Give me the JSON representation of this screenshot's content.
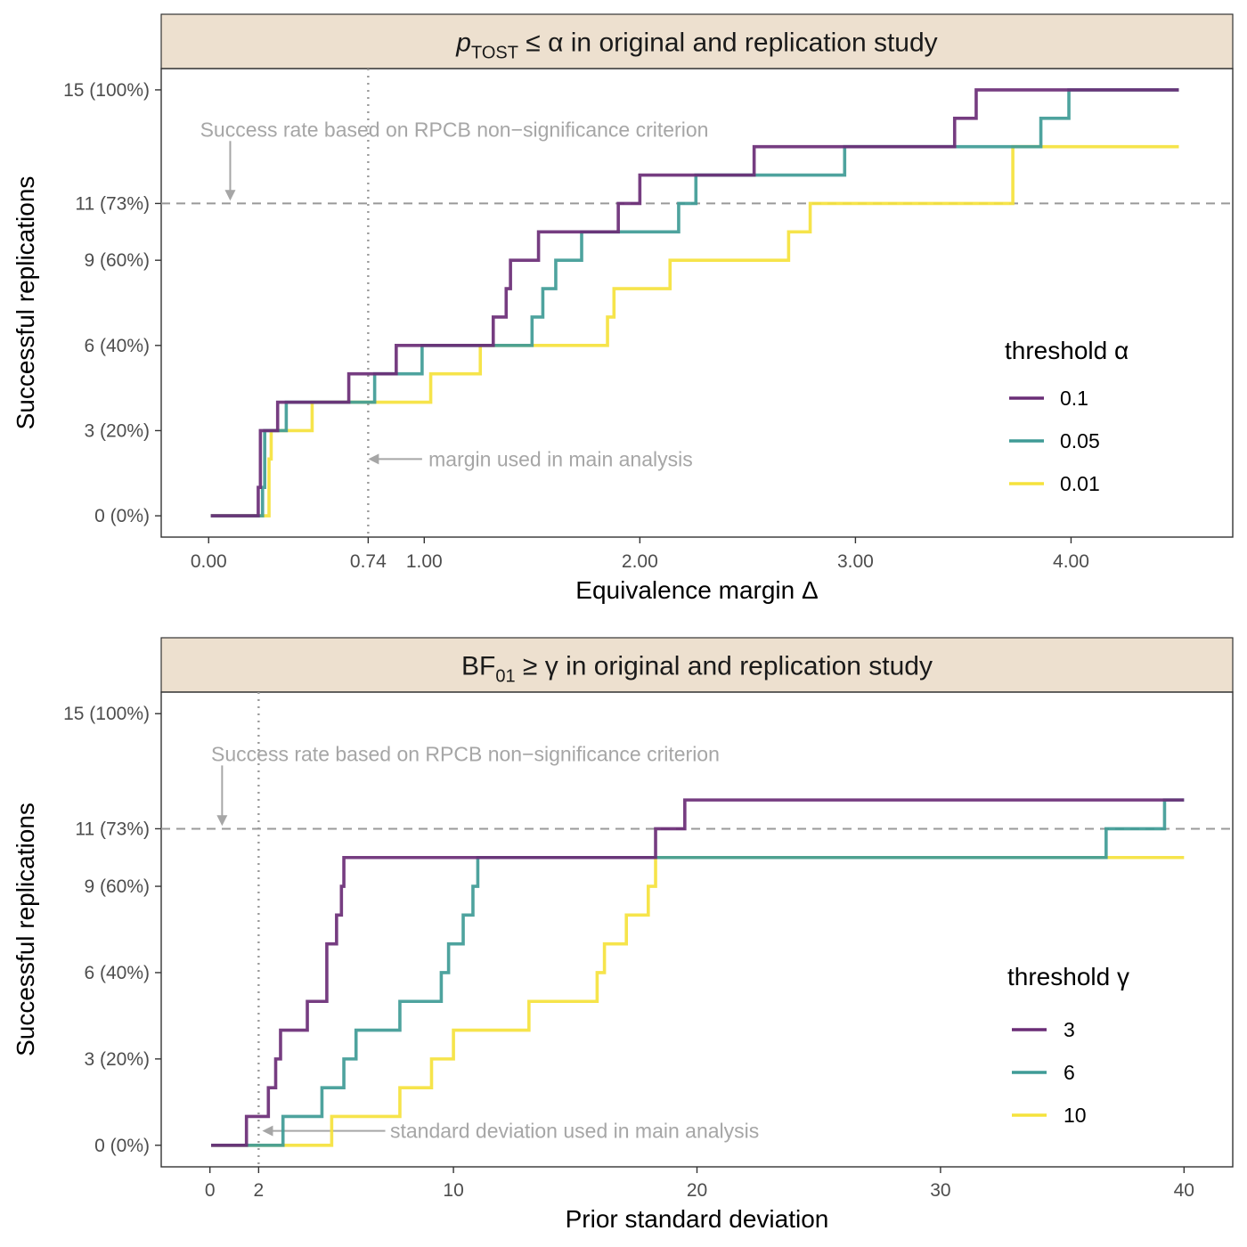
{
  "chart_data": [
    {
      "type": "line",
      "step": true,
      "strip_title": {
        "main": "p",
        "sub": "TOST",
        "rest": " ≤ α in original and replication study"
      },
      "xlabel": "Equivalence margin Δ",
      "ylabel": "Successful replications",
      "xlim": [
        -0.22,
        4.75
      ],
      "ylim": [
        -0.75,
        15.75
      ],
      "x_ticks": [
        {
          "value": 0,
          "label": "0.00"
        },
        {
          "value": 0.74,
          "label": "0.74"
        },
        {
          "value": 1,
          "label": "1.00"
        },
        {
          "value": 2,
          "label": "2.00"
        },
        {
          "value": 3,
          "label": "3.00"
        },
        {
          "value": 4,
          "label": "4.00"
        }
      ],
      "y_ticks": [
        {
          "value": 0,
          "label": "0 (0%)"
        },
        {
          "value": 3,
          "label": "3 (20%)"
        },
        {
          "value": 6,
          "label": "6 (40%)"
        },
        {
          "value": 9,
          "label": "9 (60%)"
        },
        {
          "value": 11,
          "label": "11 (73%)"
        },
        {
          "value": 15,
          "label": "15 (100%)"
        }
      ],
      "hline": 11,
      "vline": 0.74,
      "annotations": {
        "success_rate": {
          "text": "Success rate based on RPCB non−significance criterion",
          "x": -0.04,
          "y": 13.6,
          "arrow_x": 0.1,
          "arrow_y_from": 13.2,
          "arrow_y_to": 11.1
        },
        "margin": {
          "text": "margin used in main analysis",
          "x": 1.02,
          "y": 2,
          "arrow_x_from": 0.99,
          "arrow_x_to": 0.74
        }
      },
      "legend": {
        "title": "threshold α",
        "position": "right"
      },
      "series": [
        {
          "name": "0.1",
          "color": "#6a2d76",
          "x": [
            0.01,
            0.23,
            0.24,
            0.32,
            0.65,
            0.87,
            1.24,
            1.32,
            1.38,
            1.4,
            1.53,
            1.9,
            2.0,
            2.53,
            3.46,
            3.56,
            4.5
          ],
          "y": [
            0,
            1,
            3,
            4,
            5,
            6,
            6,
            7,
            8,
            9,
            10,
            11,
            12,
            13,
            14,
            15,
            15
          ]
        },
        {
          "name": "0.05",
          "color": "#3f9b96",
          "x": [
            0.01,
            0.25,
            0.26,
            0.36,
            0.77,
            0.99,
            1.5,
            1.55,
            1.61,
            1.73,
            2.18,
            2.26,
            2.95,
            3.86,
            3.99,
            4.5
          ],
          "y": [
            0,
            1,
            3,
            4,
            5,
            6,
            7,
            8,
            9,
            10,
            11,
            12,
            13,
            14,
            15,
            15
          ]
        },
        {
          "name": "0.01",
          "color": "#f5e23c",
          "x": [
            0.01,
            0.28,
            0.29,
            0.48,
            1.03,
            1.26,
            1.85,
            1.88,
            2.14,
            2.69,
            2.79,
            3.73,
            4.5
          ],
          "y": [
            0,
            2,
            3,
            4,
            5,
            6,
            7,
            8,
            9,
            10,
            11,
            13,
            13
          ]
        }
      ]
    },
    {
      "type": "line",
      "step": true,
      "strip_title": {
        "main": "BF",
        "sub": "01",
        "rest": " ≥ γ in original and replication study"
      },
      "xlabel": "Prior standard deviation",
      "ylabel": "Successful replications",
      "xlim": [
        -2,
        42
      ],
      "ylim": [
        -0.75,
        15.75
      ],
      "x_ticks": [
        {
          "value": 0,
          "label": "0"
        },
        {
          "value": 2,
          "label": "2"
        },
        {
          "value": 10,
          "label": "10"
        },
        {
          "value": 20,
          "label": "20"
        },
        {
          "value": 30,
          "label": "30"
        },
        {
          "value": 40,
          "label": "40"
        }
      ],
      "y_ticks": [
        {
          "value": 0,
          "label": "0 (0%)"
        },
        {
          "value": 3,
          "label": "3 (20%)"
        },
        {
          "value": 6,
          "label": "6 (40%)"
        },
        {
          "value": 9,
          "label": "9 (60%)"
        },
        {
          "value": 11,
          "label": "11 (73%)"
        },
        {
          "value": 15,
          "label": "15 (100%)"
        }
      ],
      "hline": 11,
      "vline": 2,
      "annotations": {
        "success_rate": {
          "text": "Success rate based on RPCB non−significance criterion",
          "x": 0.05,
          "y": 13.6,
          "arrow_x": 0.5,
          "arrow_y_from": 13.2,
          "arrow_y_to": 11.1
        },
        "margin": {
          "text": "standard deviation used in main analysis",
          "x": 7.4,
          "y": 0.5,
          "arrow_x_from": 7.2,
          "arrow_x_to": 2.15
        }
      },
      "legend": {
        "title": "threshold γ",
        "position": "right"
      },
      "series": [
        {
          "name": "3",
          "color": "#6a2d76",
          "x": [
            0.05,
            1.5,
            2.4,
            2.7,
            2.9,
            4.0,
            4.8,
            5.2,
            5.4,
            5.5,
            5.6,
            18.3,
            19.5,
            40
          ],
          "y": [
            0,
            1,
            2,
            3,
            4,
            5,
            7,
            8,
            9,
            10,
            10,
            11,
            12,
            12
          ]
        },
        {
          "name": "6",
          "color": "#3f9b96",
          "x": [
            0.05,
            3.0,
            4.6,
            5.5,
            6.0,
            7.8,
            9.5,
            9.8,
            10.4,
            10.8,
            11.0,
            36.8,
            39.2,
            40
          ],
          "y": [
            0,
            1,
            2,
            3,
            4,
            5,
            6,
            7,
            8,
            9,
            10,
            11,
            12,
            12
          ]
        },
        {
          "name": "10",
          "color": "#f5e23c",
          "x": [
            0.05,
            5.0,
            7.8,
            9.1,
            10.0,
            13.1,
            15.9,
            16.2,
            17.1,
            18.0,
            18.1,
            18.3,
            40
          ],
          "y": [
            0,
            1,
            2,
            3,
            4,
            5,
            6,
            7,
            8,
            9,
            9,
            10,
            10
          ]
        }
      ]
    }
  ]
}
